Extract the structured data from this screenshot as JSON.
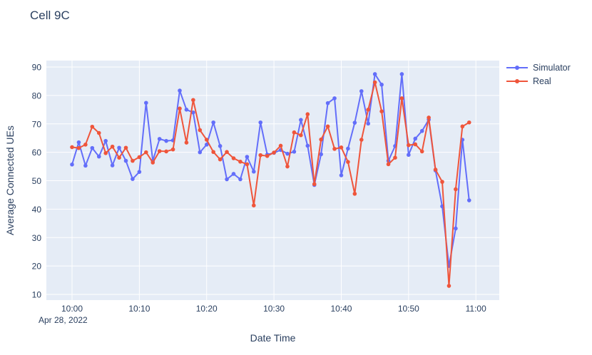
{
  "title": "Cell 9C",
  "chart_data": {
    "type": "line",
    "title": "Cell 9C",
    "xlabel": "Date Time",
    "ylabel": "Average Connected UEs",
    "x_date_annotation": "Apr 28, 2022",
    "grid": true,
    "legend_position": "right",
    "plot_bg": "#E5ECF6",
    "grid_color": "#FFFFFF",
    "text_color": "#2a3f5f",
    "ylim": [
      8,
      92.3
    ],
    "y_ticks": [
      10,
      20,
      30,
      40,
      50,
      60,
      70,
      80,
      90
    ],
    "x_tick_labels": [
      "10:00",
      "10:10",
      "10:20",
      "10:30",
      "10:40",
      "10:50",
      "11:00"
    ],
    "x": [
      "10:00",
      "10:01",
      "10:02",
      "10:03",
      "10:04",
      "10:05",
      "10:06",
      "10:07",
      "10:08",
      "10:09",
      "10:10",
      "10:11",
      "10:12",
      "10:13",
      "10:14",
      "10:15",
      "10:16",
      "10:17",
      "10:18",
      "10:19",
      "10:20",
      "10:21",
      "10:22",
      "10:23",
      "10:24",
      "10:25",
      "10:26",
      "10:27",
      "10:28",
      "10:29",
      "10:30",
      "10:31",
      "10:32",
      "10:33",
      "10:34",
      "10:35",
      "10:36",
      "10:37",
      "10:38",
      "10:39",
      "10:40",
      "10:41",
      "10:42",
      "10:43",
      "10:44",
      "10:45",
      "10:46",
      "10:47",
      "10:48",
      "10:49",
      "10:50",
      "10:51",
      "10:52",
      "10:53",
      "10:54",
      "10:55",
      "10:56",
      "10:57",
      "10:58",
      "10:59"
    ],
    "series": [
      {
        "name": "Simulator",
        "color": "#636EFA",
        "values": [
          55.7,
          63.5,
          55.3,
          61.5,
          58.5,
          64.0,
          55.4,
          61.6,
          57.0,
          50.6,
          53.1,
          77.4,
          57.0,
          64.7,
          64.0,
          64.2,
          81.7,
          75.0,
          74.0,
          60.0,
          62.7,
          70.5,
          62.2,
          50.5,
          52.4,
          50.5,
          58.4,
          53.2,
          70.5,
          59.2,
          59.8,
          60.8,
          59.5,
          60.2,
          71.4,
          62.3,
          48.5,
          59.3,
          77.3,
          79.0,
          51.9,
          61.3,
          70.4,
          81.5,
          70.1,
          87.5,
          83.8,
          57.0,
          62.2,
          87.5,
          59.1,
          64.8,
          67.5,
          71.5,
          53.6,
          41.0,
          20.0,
          33.2,
          64.4,
          43.1
        ]
      },
      {
        "name": "Real",
        "color": "#EF553B",
        "values": [
          61.8,
          61.5,
          62.7,
          69.0,
          66.8,
          59.7,
          62.0,
          58.1,
          61.6,
          57.0,
          58.3,
          60.0,
          56.4,
          60.4,
          60.3,
          61.0,
          75.4,
          63.4,
          78.4,
          67.8,
          64.4,
          60.1,
          57.5,
          60.1,
          57.9,
          56.7,
          55.8,
          41.3,
          59.0,
          58.7,
          59.9,
          62.3,
          55.0,
          67.0,
          66.0,
          73.4,
          48.8,
          64.5,
          69.1,
          61.2,
          61.7,
          56.6,
          45.4,
          64.4,
          75.0,
          84.6,
          74.4,
          55.8,
          58.1,
          79.0,
          62.5,
          62.8,
          60.3,
          72.2,
          53.9,
          49.6,
          13.0,
          47.0,
          69.1,
          70.5
        ]
      }
    ]
  }
}
